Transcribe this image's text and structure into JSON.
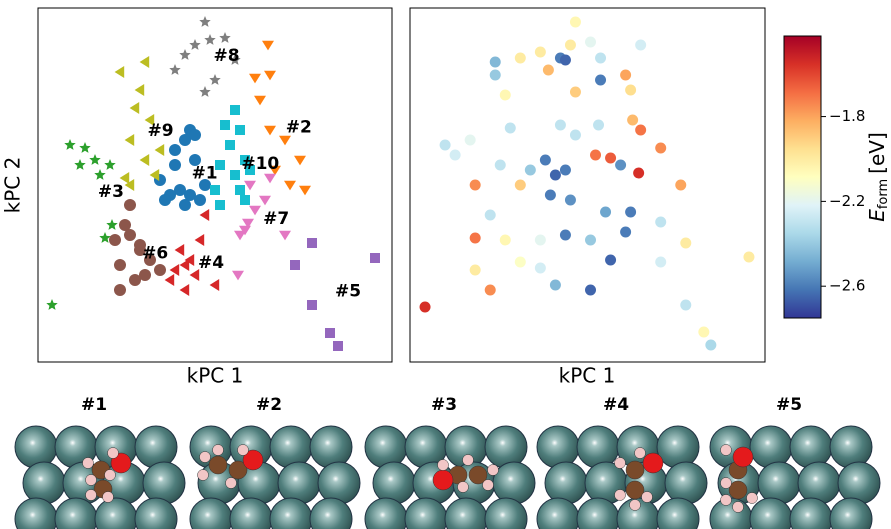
{
  "chart_data": [
    {
      "type": "scatter",
      "xlabel": "kPC 1",
      "ylabel": "kPC 2",
      "xlim": [
        0,
        354
      ],
      "ylim": [
        0,
        354
      ],
      "series": [
        {
          "name": "#1",
          "color": "#1f77b4",
          "marker": "circle",
          "x": [
            152,
            147,
            157,
            137,
            142,
            132,
            152,
            162,
            147,
            122,
            127,
            167,
            157,
            137
          ],
          "y": [
            232,
            222,
            202,
            197,
            172,
            167,
            167,
            162,
            157,
            182,
            162,
            177,
            227,
            212
          ]
        },
        {
          "name": "#2",
          "color": "#ff7f0e",
          "marker": "triangle-down",
          "x": [
            232,
            217,
            222,
            232,
            247,
            262,
            267,
            252,
            237,
            230
          ],
          "y": [
            287,
            284,
            262,
            232,
            222,
            202,
            172,
            177,
            192,
            317
          ]
        },
        {
          "name": "#3",
          "color": "#2ca02c",
          "marker": "star",
          "x": [
            32,
            47,
            57,
            72,
            62,
            67,
            74,
            14,
            42
          ],
          "y": [
            217,
            214,
            202,
            197,
            187,
            124,
            137,
            57,
            197
          ]
        },
        {
          "name": "#4",
          "color": "#d62728",
          "marker": "triangle-left",
          "x": [
            147,
            152,
            137,
            162,
            167,
            142,
            157,
            147,
            177,
            132
          ],
          "y": [
            97,
            102,
            92,
            122,
            147,
            112,
            87,
            72,
            77,
            82
          ]
        },
        {
          "name": "#5",
          "color": "#9467bd",
          "marker": "square",
          "x": [
            274,
            257,
            337,
            274,
            292,
            300
          ],
          "y": [
            119,
            97,
            104,
            57,
            29,
            16
          ]
        },
        {
          "name": "#6",
          "color": "#8c564b",
          "marker": "circle",
          "x": [
            87,
            92,
            77,
            82,
            102,
            112,
            122,
            97,
            82,
            107,
            102,
            92
          ],
          "y": [
            137,
            157,
            122,
            97,
            117,
            102,
            92,
            82,
            72,
            87,
            112,
            127
          ]
        },
        {
          "name": "#7",
          "color": "#e377c2",
          "marker": "triangle-down",
          "x": [
            217,
            227,
            207,
            202,
            210,
            247,
            200,
            212,
            232
          ],
          "y": [
            152,
            162,
            132,
            127,
            139,
            127,
            87,
            177,
            184
          ]
        },
        {
          "name": "#8",
          "color": "#7f7f7f",
          "marker": "star",
          "x": [
            167,
            147,
            137,
            172,
            187,
            197,
            177,
            167,
            157
          ],
          "y": [
            340,
            307,
            292,
            322,
            324,
            302,
            282,
            270,
            317
          ]
        },
        {
          "name": "#9",
          "color": "#bcbd22",
          "marker": "triangle-left",
          "x": [
            82,
            107,
            102,
            97,
            112,
            92,
            107,
            117,
            92,
            87,
            122
          ],
          "y": [
            290,
            300,
            272,
            254,
            242,
            222,
            202,
            187,
            177,
            184,
            212
          ]
        },
        {
          "name": "#10",
          "color": "#17becf",
          "marker": "square",
          "x": [
            197,
            187,
            202,
            192,
            207,
            182,
            197,
            177,
            182,
            202,
            207,
            212
          ],
          "y": [
            252,
            237,
            232,
            217,
            202,
            197,
            187,
            172,
            157,
            172,
            162,
            192
          ]
        }
      ]
    },
    {
      "type": "colorscatter",
      "xlabel": "kPC 1",
      "xlim": [
        0,
        354
      ],
      "ylim": [
        0,
        354
      ],
      "colormap": "RdYlBu_r",
      "clim": [
        -2.75,
        -1.42
      ],
      "colorbar_label": {
        "symbol": "E",
        "subscript": "form",
        "unit": "[eV]"
      },
      "cticks": [
        {
          "value": -1.8,
          "label": "−1.8"
        },
        {
          "value": -2.2,
          "label": "−2.2"
        },
        {
          "value": -2.6,
          "label": "−2.6"
        }
      ],
      "x": [
        165,
        160,
        130,
        180,
        230,
        85,
        110,
        150,
        155,
        190,
        138,
        85,
        215,
        190,
        220,
        165,
        95,
        188,
        222,
        150,
        100,
        35,
        45,
        60,
        230,
        250,
        165,
        185,
        200,
        228,
        210,
        270,
        135,
        145,
        155,
        140,
        160,
        120,
        90,
        65,
        110,
        80,
        65,
        95,
        130,
        155,
        180,
        200,
        215,
        195,
        220,
        250,
        275,
        250,
        180,
        145,
        110,
        80,
        15,
        275,
        338,
        293,
        300,
        65,
        130
      ],
      "y": [
        340,
        317,
        310,
        320,
        317,
        300,
        304,
        304,
        302,
        304,
        292,
        287,
        287,
        282,
        272,
        270,
        267,
        237,
        242,
        237,
        234,
        217,
        207,
        222,
        232,
        214,
        227,
        207,
        204,
        189,
        197,
        177,
        202,
        187,
        192,
        167,
        162,
        192,
        197,
        177,
        177,
        147,
        124,
        122,
        122,
        127,
        122,
        102,
        130,
        150,
        150,
        140,
        119,
        100,
        72,
        77,
        100,
        72,
        55,
        57,
        105,
        30,
        17,
        92,
        94
      ],
      "values": [
        -2.05,
        -2.0,
        -2.0,
        -2.2,
        -2.25,
        -2.45,
        -2.0,
        -2.6,
        -2.65,
        -2.3,
        -1.85,
        -2.4,
        -1.8,
        -2.6,
        -1.95,
        -1.9,
        -2.05,
        -2.3,
        -1.85,
        -2.3,
        -2.3,
        -2.3,
        -2.25,
        -2.2,
        -1.7,
        -1.75,
        -2.3,
        -1.7,
        -1.65,
        -1.55,
        -2.55,
        -1.8,
        -2.6,
        -2.65,
        -2.6,
        -2.6,
        -2.55,
        -2.4,
        -2.3,
        -1.75,
        -1.9,
        -2.3,
        -1.7,
        -2.05,
        -2.2,
        -2.6,
        -2.4,
        -2.65,
        -2.6,
        -2.5,
        -2.6,
        -2.3,
        -2.0,
        -2.25,
        -2.65,
        -2.45,
        -2.1,
        -1.75,
        -1.55,
        -2.3,
        -2.0,
        -2.05,
        -2.35,
        -2.0,
        -2.25
      ]
    }
  ],
  "structures": {
    "labels": [
      "#1",
      "#2",
      "#3",
      "#4",
      "#5"
    ]
  }
}
